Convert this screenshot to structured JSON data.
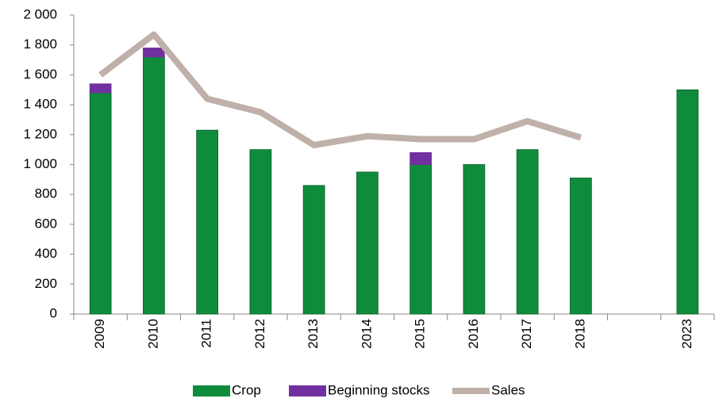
{
  "chart_data": {
    "type": "stacked-bar-line",
    "categories": [
      "2009",
      "2010",
      "2011",
      "2012",
      "2013",
      "2014",
      "2015",
      "2016",
      "2017",
      "2018",
      null,
      "2023"
    ],
    "series": [
      {
        "name": "Crop",
        "color": "#0f8c3b",
        "kind": "bar",
        "values": [
          1480,
          1720,
          1230,
          1100,
          860,
          950,
          1000,
          1000,
          1100,
          910,
          null,
          1500
        ]
      },
      {
        "name": "Beginning stocks",
        "color": "#7030a0",
        "kind": "bar",
        "values": [
          60,
          60,
          null,
          null,
          null,
          null,
          80,
          null,
          null,
          null,
          null,
          null
        ]
      },
      {
        "name": "Sales",
        "color": "#bfb1a9",
        "kind": "line",
        "values": [
          1600,
          1870,
          1440,
          1350,
          1130,
          1190,
          1170,
          1170,
          1290,
          1180,
          null,
          null
        ]
      }
    ],
    "ylim": [
      0,
      2000
    ],
    "yticks": [
      0,
      200,
      400,
      600,
      800,
      {
        "value": 1000,
        "label": "1 000"
      },
      {
        "value": 1200,
        "label": "1 200"
      },
      {
        "value": 1400,
        "label": "1 400"
      },
      {
        "value": 1600,
        "label": "1 600"
      },
      {
        "value": 1800,
        "label": "1 800"
      },
      {
        "value": 2000,
        "label": "2 000"
      }
    ],
    "legend": "bottom"
  }
}
